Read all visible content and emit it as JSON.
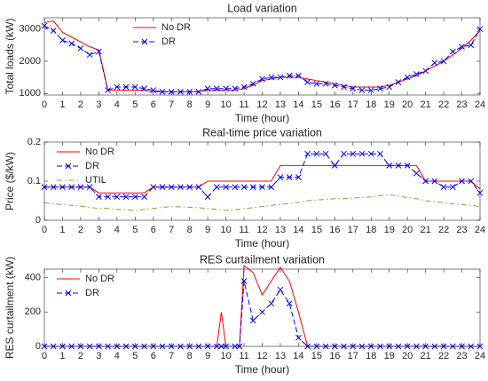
{
  "chart_data": [
    {
      "type": "line",
      "title": "Load variation",
      "xlabel": "Time (hour)",
      "ylabel": "Total loads (kW)",
      "x": [
        0,
        0.5,
        1,
        1.5,
        2,
        2.5,
        3,
        3.5,
        4,
        4.5,
        5,
        5.5,
        6,
        6.5,
        7,
        7.5,
        8,
        8.5,
        9,
        9.5,
        10,
        10.5,
        11,
        11.5,
        12,
        12.5,
        13,
        13.5,
        14,
        14.5,
        15,
        15.5,
        16,
        16.5,
        17,
        17.5,
        18,
        18.5,
        19,
        19.5,
        20,
        20.5,
        21,
        21.5,
        22,
        22.5,
        23,
        23.5,
        24
      ],
      "series": [
        {
          "name": "No DR",
          "color": "#ff0000",
          "dash": "solid",
          "marker": "none",
          "values": [
            3200,
            3250,
            2900,
            2750,
            2600,
            2450,
            2350,
            1100,
            1100,
            1100,
            1100,
            1100,
            1050,
            1050,
            1050,
            1050,
            1050,
            1050,
            1100,
            1100,
            1100,
            1100,
            1150,
            1250,
            1400,
            1450,
            1500,
            1500,
            1500,
            1450,
            1400,
            1350,
            1300,
            1250,
            1200,
            1200,
            1200,
            1200,
            1250,
            1350,
            1450,
            1550,
            1700,
            1850,
            2000,
            2200,
            2400,
            2650,
            2950
          ]
        },
        {
          "name": "DR",
          "color": "#0000ff",
          "dash": "dashed",
          "marker": "x",
          "values": [
            3100,
            2950,
            2650,
            2550,
            2400,
            2200,
            2300,
            1100,
            1200,
            1200,
            1200,
            1150,
            1100,
            1050,
            1050,
            1050,
            1050,
            1050,
            1150,
            1150,
            1150,
            1150,
            1200,
            1300,
            1450,
            1500,
            1500,
            1550,
            1550,
            1350,
            1300,
            1300,
            1250,
            1200,
            1150,
            1100,
            1100,
            1150,
            1200,
            1350,
            1500,
            1600,
            1700,
            1950,
            2000,
            2300,
            2450,
            2500,
            3000
          ]
        }
      ],
      "xlim": [
        0,
        24
      ],
      "xticks": [
        0,
        1,
        2,
        3,
        4,
        5,
        6,
        7,
        8,
        9,
        10,
        11,
        12,
        13,
        14,
        15,
        16,
        17,
        18,
        19,
        20,
        21,
        22,
        23,
        24
      ],
      "ylim": [
        950,
        3350
      ],
      "yticks": [
        1000,
        2000,
        3000
      ],
      "legend": "upper center"
    },
    {
      "type": "line",
      "title": "Real-time price variation",
      "xlabel": "Time (hour)",
      "ylabel": "Price ($/kW)",
      "x": [
        0,
        0.5,
        1,
        1.5,
        2,
        2.5,
        3,
        3.5,
        4,
        4.5,
        5,
        5.5,
        6,
        6.5,
        7,
        7.5,
        8,
        8.5,
        9,
        9.5,
        10,
        10.5,
        11,
        11.5,
        12,
        12.5,
        13,
        13.5,
        14,
        14.5,
        15,
        15.5,
        16,
        16.5,
        17,
        17.5,
        18,
        18.5,
        19,
        19.5,
        20,
        20.5,
        21,
        21.5,
        22,
        22.5,
        23,
        23.5,
        24
      ],
      "series": [
        {
          "name": "No DR",
          "color": "#ff0000",
          "dash": "solid",
          "marker": "none",
          "values": [
            0.085,
            0.085,
            0.085,
            0.085,
            0.085,
            0.085,
            0.07,
            0.07,
            0.07,
            0.07,
            0.07,
            0.07,
            0.085,
            0.085,
            0.085,
            0.085,
            0.085,
            0.085,
            0.1,
            0.1,
            0.1,
            0.1,
            0.1,
            0.1,
            0.1,
            0.1,
            0.14,
            0.14,
            0.14,
            0.14,
            0.14,
            0.14,
            0.14,
            0.14,
            0.14,
            0.14,
            0.14,
            0.14,
            0.14,
            0.14,
            0.14,
            0.14,
            0.1,
            0.1,
            0.1,
            0.1,
            0.1,
            0.1,
            0.08
          ]
        },
        {
          "name": "DR",
          "color": "#0000ff",
          "dash": "dashed",
          "marker": "x",
          "values": [
            0.085,
            0.085,
            0.085,
            0.085,
            0.085,
            0.085,
            0.06,
            0.06,
            0.06,
            0.06,
            0.06,
            0.06,
            0.085,
            0.085,
            0.085,
            0.085,
            0.085,
            0.085,
            0.06,
            0.085,
            0.085,
            0.085,
            0.085,
            0.085,
            0.085,
            0.085,
            0.11,
            0.11,
            0.11,
            0.17,
            0.17,
            0.17,
            0.14,
            0.17,
            0.17,
            0.17,
            0.17,
            0.17,
            0.14,
            0.14,
            0.14,
            0.12,
            0.1,
            0.1,
            0.085,
            0.085,
            0.1,
            0.1,
            0.07
          ]
        },
        {
          "name": "UTIL",
          "color": "#77ac30",
          "dash": "dashdot",
          "marker": "none",
          "values": [
            0.045,
            0.042,
            0.04,
            0.038,
            0.036,
            0.033,
            0.03,
            0.03,
            0.028,
            0.027,
            0.025,
            0.028,
            0.03,
            0.033,
            0.035,
            0.034,
            0.033,
            0.032,
            0.03,
            0.028,
            0.025,
            0.027,
            0.03,
            0.032,
            0.035,
            0.038,
            0.04,
            0.043,
            0.046,
            0.05,
            0.052,
            0.053,
            0.055,
            0.055,
            0.057,
            0.058,
            0.06,
            0.063,
            0.065,
            0.062,
            0.058,
            0.055,
            0.05,
            0.048,
            0.045,
            0.042,
            0.04,
            0.038,
            0.035
          ]
        }
      ],
      "xlim": [
        0,
        24
      ],
      "xticks": [
        0,
        1,
        2,
        3,
        4,
        5,
        6,
        7,
        8,
        9,
        10,
        11,
        12,
        13,
        14,
        15,
        16,
        17,
        18,
        19,
        20,
        21,
        22,
        23,
        24
      ],
      "ylim": [
        0,
        0.2
      ],
      "yticks": [
        0,
        0.1,
        0.2
      ],
      "legend": "upper left"
    },
    {
      "type": "line",
      "title": "RES curtailment variation",
      "xlabel": "Time (hour)",
      "ylabel": "RES curtailment (kW)",
      "x": [
        0,
        0.5,
        1,
        1.5,
        2,
        2.5,
        3,
        3.5,
        4,
        4.5,
        5,
        5.5,
        6,
        6.5,
        7,
        7.5,
        8,
        8.5,
        9,
        9.5,
        9.75,
        10,
        10.5,
        10.75,
        11,
        11.5,
        12,
        12.5,
        13,
        13.5,
        14,
        14.5,
        15,
        15.5,
        16,
        16.5,
        17,
        17.5,
        18,
        18.5,
        19,
        19.5,
        20,
        20.5,
        21,
        21.5,
        22,
        22.5,
        23,
        23.5,
        24
      ],
      "series": [
        {
          "name": "No DR",
          "color": "#ff0000",
          "dash": "solid",
          "marker": "none",
          "values": [
            0,
            0,
            0,
            0,
            0,
            0,
            0,
            0,
            0,
            0,
            0,
            0,
            0,
            0,
            0,
            0,
            0,
            0,
            0,
            0,
            200,
            0,
            0,
            0,
            470,
            430,
            300,
            380,
            460,
            380,
            200,
            0,
            0,
            0,
            0,
            0,
            0,
            0,
            0,
            0,
            0,
            0,
            0,
            0,
            0,
            0,
            0,
            0,
            0,
            0,
            0
          ]
        },
        {
          "name": "DR",
          "color": "#0000ff",
          "dash": "dashed",
          "marker": "x",
          "values": [
            0,
            0,
            0,
            0,
            0,
            0,
            0,
            0,
            0,
            0,
            0,
            0,
            0,
            0,
            0,
            0,
            0,
            0,
            0,
            0,
            0,
            0,
            0,
            0,
            380,
            150,
            200,
            250,
            330,
            250,
            50,
            0,
            0,
            0,
            0,
            0,
            0,
            0,
            0,
            0,
            0,
            0,
            0,
            0,
            0,
            0,
            0,
            0,
            0,
            0,
            0
          ]
        }
      ],
      "xlim": [
        0,
        24
      ],
      "xticks": [
        0,
        1,
        2,
        3,
        4,
        5,
        6,
        7,
        8,
        9,
        10,
        11,
        12,
        13,
        14,
        15,
        16,
        17,
        18,
        19,
        20,
        21,
        22,
        23,
        24
      ],
      "ylim": [
        0,
        450
      ],
      "yticks": [
        0,
        200,
        400
      ],
      "legend": "upper left"
    }
  ]
}
